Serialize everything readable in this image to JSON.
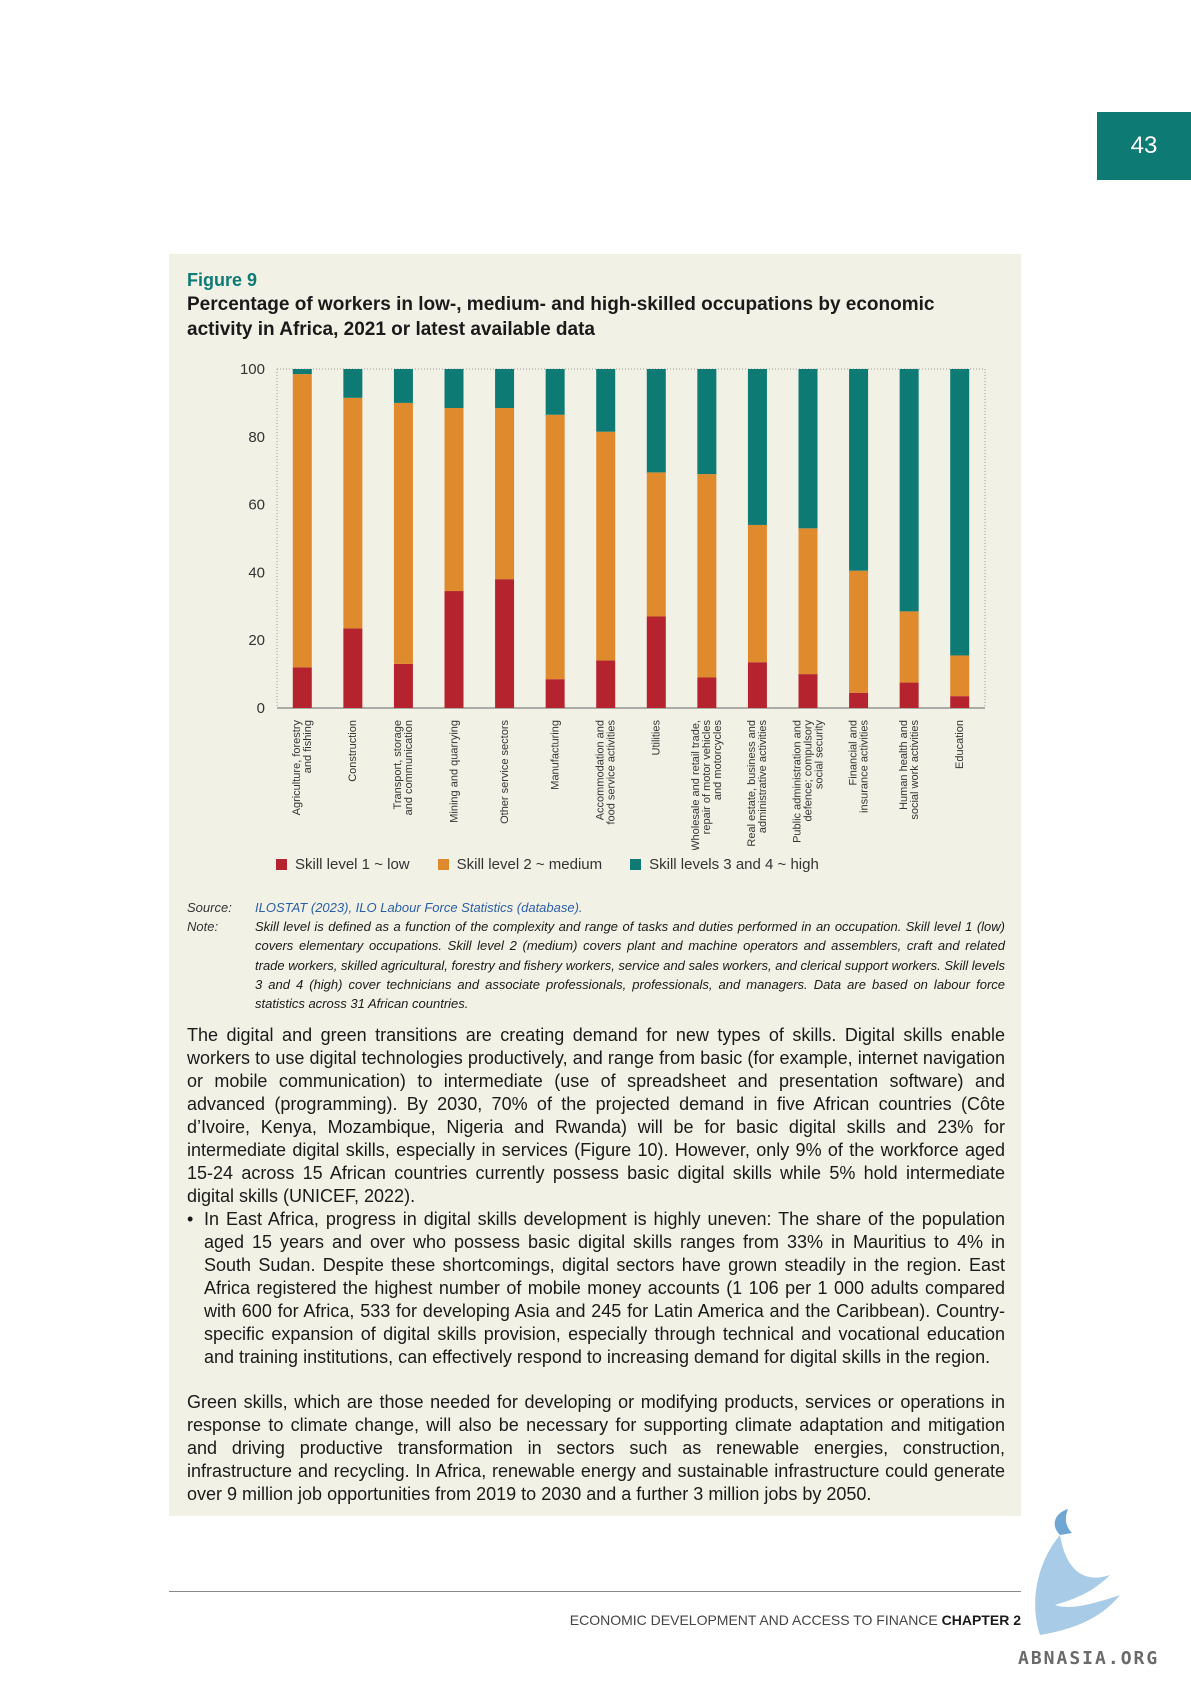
{
  "page_number": "43",
  "figure": {
    "label": "Figure 9",
    "title": "Percentage of workers in low-, medium- and high-skilled occupations by economic activity in Africa, 2021 or latest available data"
  },
  "chart_data": {
    "type": "bar",
    "stacked": true,
    "title": "",
    "ylim": [
      0,
      100
    ],
    "yticks": [
      "0",
      "20",
      "40",
      "60",
      "80",
      "100"
    ],
    "categories": [
      [
        "Agriculture, forestry",
        "and fishing"
      ],
      [
        "Construction"
      ],
      [
        "Transport, storage",
        "and communication"
      ],
      [
        "Mining and quarrying"
      ],
      [
        "Other service sectors"
      ],
      [
        "Manufacturing"
      ],
      [
        "Accommodation and",
        "food service activities"
      ],
      [
        "Utilities"
      ],
      [
        "Wholesale and retail trade,",
        "repair of motor vehicles",
        "and motorcycles"
      ],
      [
        "Real estate, business and",
        "administrative activities"
      ],
      [
        "Public administration and",
        "defence; compulsory",
        "social security"
      ],
      [
        "Financial and",
        "insurance activities"
      ],
      [
        "Human health and",
        "social work activities"
      ],
      [
        "Education"
      ]
    ],
    "series": [
      {
        "name": "Skill level 1 ~ low",
        "color": "#b5232f",
        "values": [
          12,
          23.5,
          13,
          34.5,
          38,
          8.5,
          14,
          27,
          9,
          13.5,
          10,
          4.5,
          7.5,
          3.5
        ]
      },
      {
        "name": "Skill level 2 ~ medium",
        "color": "#e08a2e",
        "values": [
          86.5,
          68,
          77,
          54,
          50.5,
          78,
          67.5,
          42.5,
          60,
          40.5,
          43,
          36,
          21,
          12
        ]
      },
      {
        "name": "Skill levels 3 and 4 ~ high",
        "color": "#0e7a74",
        "values": [
          1.5,
          8.5,
          10,
          11.5,
          11.5,
          13.5,
          18.5,
          30.5,
          31,
          46,
          47,
          59.5,
          71.5,
          84.5
        ]
      }
    ],
    "legend_position": "bottom"
  },
  "source": {
    "key": "Source:",
    "text": "ILOSTAT (2023), ILO Labour Force Statistics (database)."
  },
  "note": {
    "key": "Note:",
    "text": "Skill level is defined as a function of the complexity and range of tasks and duties performed in an occupation. Skill level 1 (low) covers elementary occupations. Skill level 2 (medium) covers plant and machine operators and assemblers, craft and related trade workers, skilled agricultural, forestry and fishery workers, service and sales workers, and clerical support workers. Skill levels 3 and 4 (high) cover technicians and associate professionals, professionals, and managers. Data are based on labour force statistics across 31 African countries."
  },
  "body": {
    "para1": "The digital and green transitions are creating demand for new types of skills. Digital skills enable workers to use digital technologies productively, and range from basic (for example, internet navigation or mobile communication) to intermediate (use of spreadsheet and presentation software) and advanced (programming). By 2030, 70% of the projected demand in five African countries (Côte d’Ivoire, Kenya, Mozambique, Nigeria and Rwanda) will be for basic digital skills and 23% for intermediate digital skills, especially in services (Figure 10). However, only 9% of the workforce aged 15-24 across 15 African countries currently possess basic digital skills while 5% hold intermediate digital skills (UNICEF, 2022).",
    "bullet": "In East Africa, progress in digital skills development is highly uneven: The share of the population aged 15 years and over who possess basic digital skills ranges from 33% in Mauritius to 4% in South Sudan. Despite these shortcomings, digital sectors have grown steadily in the region. East Africa registered the highest number of mobile money accounts (1 106 per 1 000 adults compared with 600 for Africa, 533 for developing Asia and 245 for Latin America and the Caribbean). Country-specific expansion of digital skills provision, especially through technical and vocational education and training institutions, can effectively respond to increasing demand for digital skills in the region.",
    "para2": "Green skills, which are those needed for developing or modifying products, services or operations in response to climate change, will also be necessary for supporting climate adaptation and mitigation and driving productive transformation in sectors such as renewable energies, construction, infrastructure and recycling. In Africa, renewable energy and sustainable infrastructure could generate over 9 million job opportunities from 2019 to 2030 and a further 3 million jobs by 2050."
  },
  "footer": {
    "text": "ECONOMIC DEVELOPMENT AND ACCESS TO FINANCE",
    "chapter": "CHAPTER 2"
  },
  "watermark": "ABNASIA.ORG"
}
